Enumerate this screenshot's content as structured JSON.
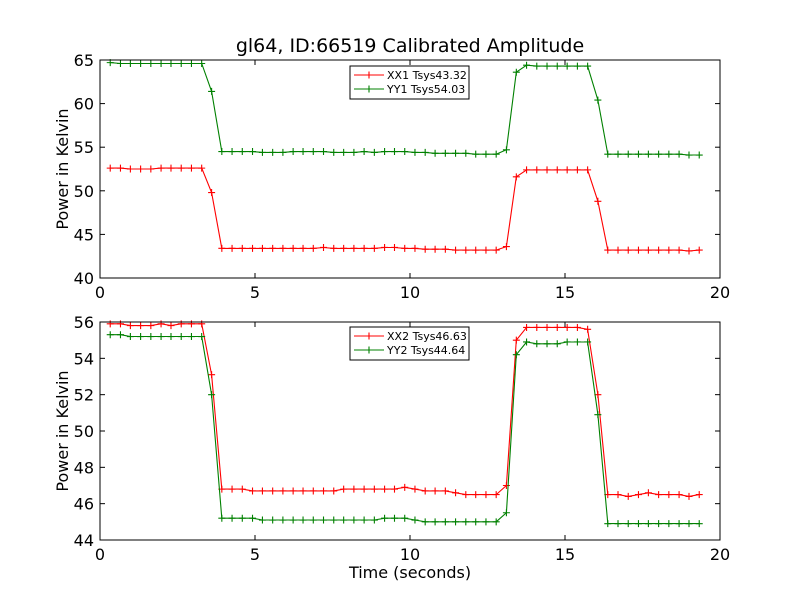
{
  "chart_data": [
    {
      "type": "line",
      "title": "gl64, ID:66519 Calibrated Amplitude",
      "xlabel": "",
      "ylabel": "Power in Kelvin",
      "xlim": [
        0,
        20
      ],
      "ylim": [
        40,
        65
      ],
      "xticks": [
        0,
        5,
        10,
        15,
        20
      ],
      "yticks": [
        40,
        45,
        50,
        55,
        60,
        65
      ],
      "grid": false,
      "legend": "upper-center",
      "x": [
        0.33,
        0.66,
        0.98,
        1.31,
        1.64,
        1.97,
        2.29,
        2.62,
        2.95,
        3.28,
        3.6,
        3.93,
        4.26,
        4.59,
        4.92,
        5.24,
        5.57,
        5.9,
        6.23,
        6.55,
        6.88,
        7.21,
        7.54,
        7.86,
        8.19,
        8.52,
        8.85,
        9.18,
        9.5,
        9.83,
        10.16,
        10.49,
        10.81,
        11.14,
        11.47,
        11.8,
        12.12,
        12.45,
        12.78,
        13.11,
        13.43,
        13.76,
        14.09,
        14.42,
        14.75,
        15.07,
        15.4,
        15.73,
        16.06,
        16.38,
        16.71,
        17.04,
        17.37,
        17.69,
        18.02,
        18.35,
        18.68,
        19.0,
        19.33
      ],
      "series": [
        {
          "name": "XX1 Tsys43.32",
          "color": "#ff0000",
          "values": [
            52.6,
            52.6,
            52.5,
            52.5,
            52.5,
            52.6,
            52.6,
            52.6,
            52.6,
            52.6,
            49.8,
            43.4,
            43.4,
            43.4,
            43.4,
            43.4,
            43.4,
            43.4,
            43.4,
            43.4,
            43.4,
            43.5,
            43.4,
            43.4,
            43.4,
            43.4,
            43.4,
            43.5,
            43.5,
            43.4,
            43.4,
            43.3,
            43.3,
            43.3,
            43.2,
            43.2,
            43.2,
            43.2,
            43.2,
            43.6,
            51.6,
            52.4,
            52.4,
            52.4,
            52.4,
            52.4,
            52.4,
            52.4,
            48.8,
            43.2,
            43.2,
            43.2,
            43.2,
            43.2,
            43.2,
            43.2,
            43.2,
            43.1,
            43.2
          ]
        },
        {
          "name": "YY1 Tsys54.03",
          "color": "#008000",
          "values": [
            64.7,
            64.6,
            64.6,
            64.6,
            64.6,
            64.6,
            64.6,
            64.6,
            64.6,
            64.6,
            61.4,
            54.5,
            54.5,
            54.5,
            54.5,
            54.4,
            54.4,
            54.4,
            54.5,
            54.5,
            54.5,
            54.5,
            54.4,
            54.4,
            54.4,
            54.5,
            54.4,
            54.5,
            54.5,
            54.5,
            54.4,
            54.4,
            54.3,
            54.3,
            54.3,
            54.3,
            54.2,
            54.2,
            54.2,
            54.7,
            63.6,
            64.4,
            64.3,
            64.3,
            64.3,
            64.3,
            64.3,
            64.3,
            60.4,
            54.2,
            54.2,
            54.2,
            54.2,
            54.2,
            54.2,
            54.2,
            54.2,
            54.1,
            54.1
          ]
        }
      ]
    },
    {
      "type": "line",
      "title": "",
      "xlabel": "Time (seconds)",
      "ylabel": "Power in Kelvin",
      "xlim": [
        0,
        20
      ],
      "ylim": [
        44,
        56
      ],
      "xticks": [
        0,
        5,
        10,
        15,
        20
      ],
      "yticks": [
        44,
        46,
        48,
        50,
        52,
        54,
        56
      ],
      "grid": false,
      "legend": "upper-center",
      "x": [
        0.33,
        0.66,
        0.98,
        1.31,
        1.64,
        1.97,
        2.29,
        2.62,
        2.95,
        3.28,
        3.6,
        3.93,
        4.26,
        4.59,
        4.92,
        5.24,
        5.57,
        5.9,
        6.23,
        6.55,
        6.88,
        7.21,
        7.54,
        7.86,
        8.19,
        8.52,
        8.85,
        9.18,
        9.5,
        9.83,
        10.16,
        10.49,
        10.81,
        11.14,
        11.47,
        11.8,
        12.12,
        12.45,
        12.78,
        13.11,
        13.43,
        13.76,
        14.09,
        14.42,
        14.75,
        15.07,
        15.4,
        15.73,
        16.06,
        16.38,
        16.71,
        17.04,
        17.37,
        17.69,
        18.02,
        18.35,
        18.68,
        19.0,
        19.33
      ],
      "series": [
        {
          "name": "XX2 Tsys46.63",
          "color": "#ff0000",
          "values": [
            55.9,
            55.9,
            55.8,
            55.8,
            55.8,
            55.9,
            55.8,
            55.9,
            55.9,
            55.9,
            53.1,
            46.8,
            46.8,
            46.8,
            46.7,
            46.7,
            46.7,
            46.7,
            46.7,
            46.7,
            46.7,
            46.7,
            46.7,
            46.8,
            46.8,
            46.8,
            46.8,
            46.8,
            46.8,
            46.9,
            46.8,
            46.7,
            46.7,
            46.7,
            46.6,
            46.5,
            46.5,
            46.5,
            46.5,
            47.0,
            55.0,
            55.7,
            55.7,
            55.7,
            55.7,
            55.7,
            55.7,
            55.6,
            52.0,
            46.5,
            46.5,
            46.4,
            46.5,
            46.6,
            46.5,
            46.5,
            46.5,
            46.4,
            46.5
          ]
        },
        {
          "name": "YY2 Tsys44.64",
          "color": "#008000",
          "values": [
            55.3,
            55.3,
            55.2,
            55.2,
            55.2,
            55.2,
            55.2,
            55.2,
            55.2,
            55.2,
            52.0,
            45.2,
            45.2,
            45.2,
            45.2,
            45.1,
            45.1,
            45.1,
            45.1,
            45.1,
            45.1,
            45.1,
            45.1,
            45.1,
            45.1,
            45.1,
            45.1,
            45.2,
            45.2,
            45.2,
            45.1,
            45.0,
            45.0,
            45.0,
            45.0,
            45.0,
            45.0,
            45.0,
            45.0,
            45.5,
            54.2,
            54.9,
            54.8,
            54.8,
            54.8,
            54.9,
            54.9,
            54.9,
            50.9,
            44.9,
            44.9,
            44.9,
            44.9,
            44.9,
            44.9,
            44.9,
            44.9,
            44.9,
            44.9
          ]
        }
      ]
    }
  ]
}
